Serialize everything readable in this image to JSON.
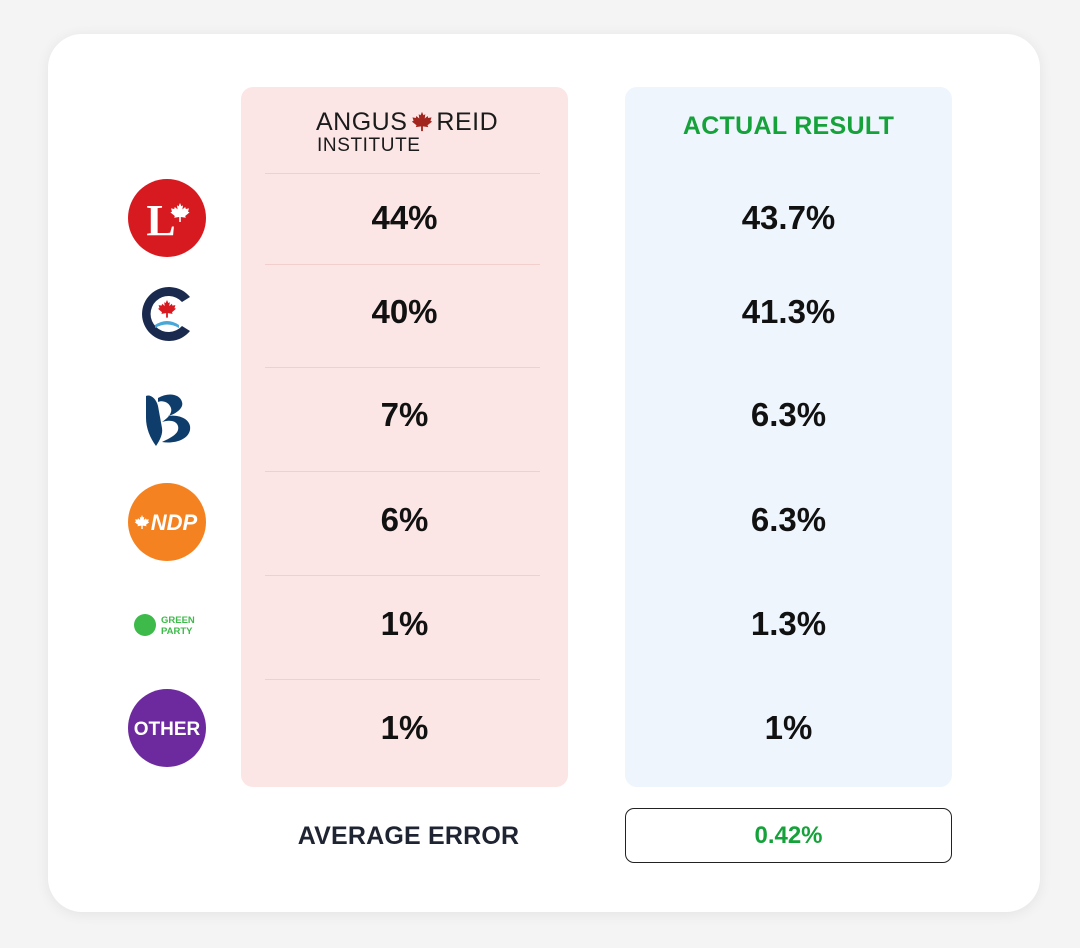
{
  "chart_data": {
    "type": "table",
    "columns": [
      {
        "header": "ANGUS REID INSTITUTE"
      },
      {
        "header": "ACTUAL RESULT"
      }
    ],
    "rows": [
      {
        "party": "Liberal",
        "poll": "44%",
        "actual": "43.7%"
      },
      {
        "party": "Conservative",
        "poll": "40%",
        "actual": "41.3%"
      },
      {
        "party": "Bloc Québécois",
        "poll": "7%",
        "actual": "6.3%"
      },
      {
        "party": "NDP",
        "poll": "6%",
        "actual": "6.3%"
      },
      {
        "party": "Green Party",
        "poll": "1%",
        "actual": "1.3%"
      },
      {
        "party": "Other",
        "poll": "1%",
        "actual": "1%"
      }
    ],
    "summary": {
      "label": "AVERAGE ERROR",
      "value": "0.42%"
    }
  },
  "brand": {
    "line1_left": "ANGUS",
    "line1_right": "REID",
    "line2": "INSTITUTE"
  },
  "logos": {
    "liberal_letter": "L",
    "ndp_text": "NDP",
    "green_line1": "GREEN",
    "green_line2": "PARTY",
    "other_text": "OTHER"
  },
  "colors": {
    "poll_column_bg": "#fbe6e5",
    "actual_column_bg": "#eef5fd",
    "accent_green": "#16a23a",
    "liberal_red": "#d71920",
    "conservative_navy": "#1a2a4f",
    "bloc_navy": "#0f3d6b",
    "ndp_orange": "#f58220",
    "green_party": "#3dba4a",
    "other_purple": "#6d2a9e"
  }
}
